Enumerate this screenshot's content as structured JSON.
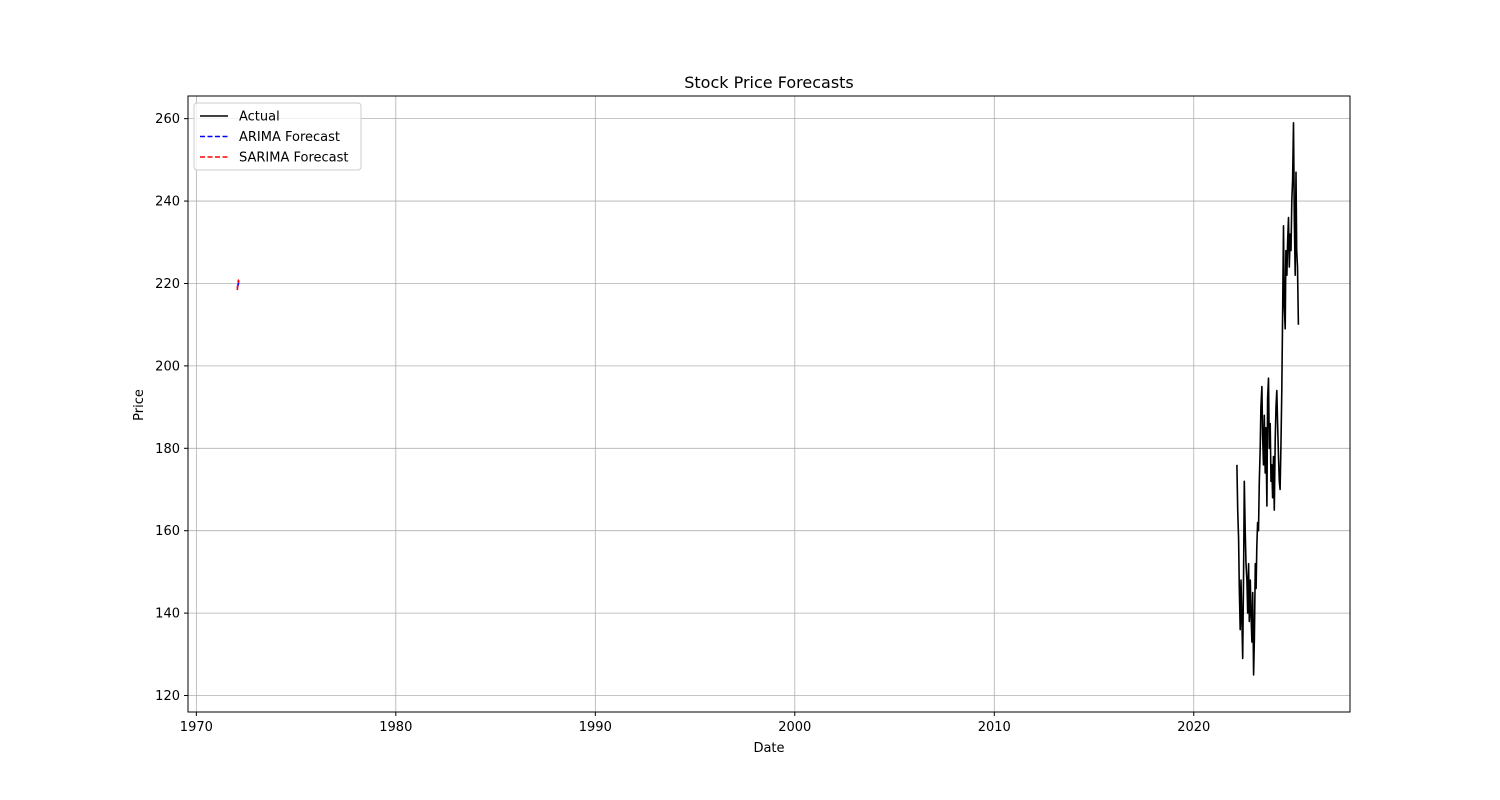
{
  "chart_data": {
    "type": "line",
    "title": "Stock Price Forecasts",
    "xlabel": "Date",
    "ylabel": "Price",
    "xaxis_type": "date",
    "xlim": [
      "1969-08-01",
      "2027-11-01"
    ],
    "ylim": [
      116,
      265.5
    ],
    "xticks": [
      {
        "value": "1970-01-01",
        "label": "1970"
      },
      {
        "value": "1980-01-01",
        "label": "1980"
      },
      {
        "value": "1990-01-01",
        "label": "1990"
      },
      {
        "value": "2000-01-01",
        "label": "2000"
      },
      {
        "value": "2010-01-01",
        "label": "2010"
      },
      {
        "value": "2020-01-01",
        "label": "2020"
      }
    ],
    "yticks": [
      {
        "value": 120,
        "label": "120"
      },
      {
        "value": 140,
        "label": "140"
      },
      {
        "value": 160,
        "label": "160"
      },
      {
        "value": 180,
        "label": "180"
      },
      {
        "value": 200,
        "label": "200"
      },
      {
        "value": 220,
        "label": "220"
      },
      {
        "value": 240,
        "label": "240"
      },
      {
        "value": 260,
        "label": "260"
      }
    ],
    "grid": true,
    "legend_position": "top-left",
    "series": [
      {
        "name": "Actual",
        "color": "#000000",
        "style": "solid",
        "x": [
          "2022-03-01",
          "2022-03-15",
          "2022-04-01",
          "2022-04-15",
          "2022-05-01",
          "2022-05-15",
          "2022-06-01",
          "2022-06-15",
          "2022-07-01",
          "2022-07-15",
          "2022-08-01",
          "2022-08-15",
          "2022-09-01",
          "2022-09-15",
          "2022-10-01",
          "2022-10-15",
          "2022-11-01",
          "2022-11-15",
          "2022-12-01",
          "2022-12-15",
          "2023-01-01",
          "2023-01-15",
          "2023-02-01",
          "2023-02-15",
          "2023-03-01",
          "2023-03-15",
          "2023-04-01",
          "2023-04-15",
          "2023-05-01",
          "2023-05-15",
          "2023-06-01",
          "2023-06-15",
          "2023-07-01",
          "2023-07-15",
          "2023-08-01",
          "2023-08-15",
          "2023-09-01",
          "2023-09-15",
          "2023-10-01",
          "2023-10-15",
          "2023-11-01",
          "2023-11-15",
          "2023-12-01",
          "2023-12-15",
          "2024-01-01",
          "2024-01-15",
          "2024-02-01",
          "2024-02-15",
          "2024-03-01",
          "2024-03-15",
          "2024-04-01",
          "2024-04-15",
          "2024-05-01",
          "2024-05-15",
          "2024-06-01",
          "2024-06-15",
          "2024-07-01",
          "2024-07-15",
          "2024-08-01",
          "2024-08-15",
          "2024-09-01",
          "2024-09-15",
          "2024-10-01",
          "2024-10-15",
          "2024-11-01",
          "2024-11-15",
          "2024-12-01",
          "2024-12-15",
          "2025-01-01",
          "2025-01-15",
          "2025-02-01",
          "2025-02-15",
          "2025-03-01",
          "2025-03-15",
          "2025-04-01"
        ],
        "y": [
          176,
          165,
          158,
          146,
          136,
          148,
          138,
          129,
          150,
          172,
          160,
          152,
          148,
          140,
          152,
          138,
          148,
          140,
          133,
          145,
          125,
          134,
          152,
          146,
          156,
          162,
          160,
          172,
          180,
          190,
          195,
          183,
          176,
          188,
          174,
          185,
          166,
          192,
          197,
          180,
          186,
          172,
          176,
          168,
          178,
          165,
          182,
          190,
          194,
          186,
          178,
          172,
          170,
          180,
          194,
          212,
          234,
          215,
          209,
          228,
          222,
          230,
          236,
          224,
          232,
          228,
          240,
          245,
          259,
          236,
          222,
          247,
          228,
          224,
          210
        ]
      },
      {
        "name": "ARIMA Forecast",
        "color": "#0000ff",
        "style": "dashed",
        "x": [
          "1972-01-20",
          "1972-02-01",
          "1972-02-10",
          "1972-02-20"
        ],
        "y": [
          219.0,
          219.5,
          220.0,
          220.2
        ]
      },
      {
        "name": "SARIMA Forecast",
        "color": "#ff0000",
        "style": "dashed",
        "x": [
          "1972-01-20",
          "1972-01-28",
          "1972-02-05",
          "1972-02-12",
          "1972-02-20"
        ],
        "y": [
          218.4,
          219.6,
          220.4,
          220.8,
          220.1
        ]
      }
    ]
  }
}
